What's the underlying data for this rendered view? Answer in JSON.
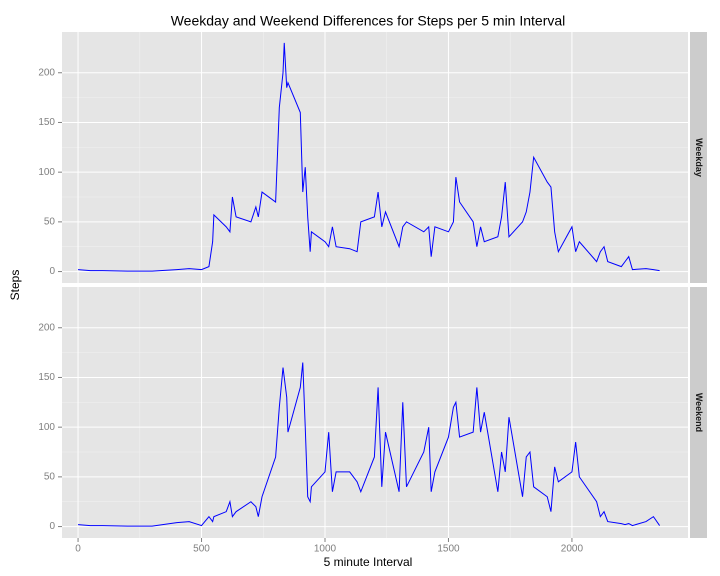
{
  "chart_data": {
    "type": "line",
    "title": "Weekday and Weekend Differences for Steps per 5 min Interval",
    "x_label": "5 minute Interval",
    "y_label": "Steps",
    "x": [
      0,
      50,
      100,
      200,
      300,
      400,
      450,
      500,
      530,
      545,
      550,
      600,
      615,
      625,
      640,
      700,
      720,
      730,
      745,
      800,
      815,
      830,
      835,
      845,
      850,
      900,
      910,
      920,
      930,
      940,
      945,
      1000,
      1015,
      1030,
      1045,
      1100,
      1130,
      1145,
      1200,
      1215,
      1230,
      1245,
      1300,
      1315,
      1330,
      1400,
      1420,
      1430,
      1445,
      1500,
      1520,
      1530,
      1545,
      1600,
      1615,
      1630,
      1645,
      1700,
      1715,
      1730,
      1745,
      1800,
      1815,
      1830,
      1845,
      1900,
      1915,
      1930,
      1945,
      2000,
      2015,
      2030,
      2100,
      2115,
      2130,
      2145,
      2200,
      2215,
      2230,
      2245,
      2300,
      2330,
      2355
    ],
    "series": [
      {
        "name": "Weekday",
        "color": "#0000ff",
        "values": [
          2,
          1,
          1,
          0.5,
          0.5,
          2,
          3,
          2,
          5,
          30,
          57,
          45,
          40,
          75,
          55,
          50,
          65,
          55,
          80,
          70,
          165,
          200,
          230,
          185,
          190,
          160,
          80,
          105,
          55,
          20,
          40,
          30,
          25,
          45,
          25,
          23,
          20,
          50,
          55,
          80,
          45,
          60,
          25,
          45,
          50,
          40,
          45,
          15,
          45,
          40,
          50,
          95,
          70,
          50,
          25,
          45,
          30,
          35,
          55,
          90,
          35,
          50,
          60,
          80,
          115,
          90,
          85,
          40,
          20,
          45,
          20,
          30,
          10,
          20,
          25,
          10,
          5,
          10,
          15,
          2,
          3,
          2,
          1
        ]
      },
      {
        "name": "Weekend",
        "color": "#0000ff",
        "values": [
          2,
          1,
          1,
          0.5,
          0.5,
          4,
          5,
          1,
          10,
          5,
          10,
          15,
          25,
          10,
          15,
          25,
          20,
          10,
          30,
          70,
          120,
          160,
          150,
          130,
          95,
          140,
          165,
          100,
          30,
          25,
          40,
          55,
          95,
          35,
          55,
          55,
          45,
          35,
          70,
          140,
          40,
          95,
          35,
          125,
          40,
          75,
          100,
          35,
          55,
          90,
          120,
          125,
          90,
          95,
          140,
          95,
          115,
          35,
          75,
          55,
          110,
          30,
          70,
          75,
          40,
          30,
          15,
          60,
          45,
          55,
          85,
          50,
          25,
          10,
          15,
          5,
          3,
          2,
          3,
          1,
          5,
          10,
          1
        ]
      }
    ],
    "xlim": [
      -65,
      2470
    ],
    "xticks": [
      0,
      500,
      1000,
      1500,
      2000
    ],
    "ylim": [
      -11.5,
      241
    ],
    "yticks": [
      0,
      50,
      100,
      150,
      200
    ],
    "grid": true,
    "facet": "rows"
  }
}
